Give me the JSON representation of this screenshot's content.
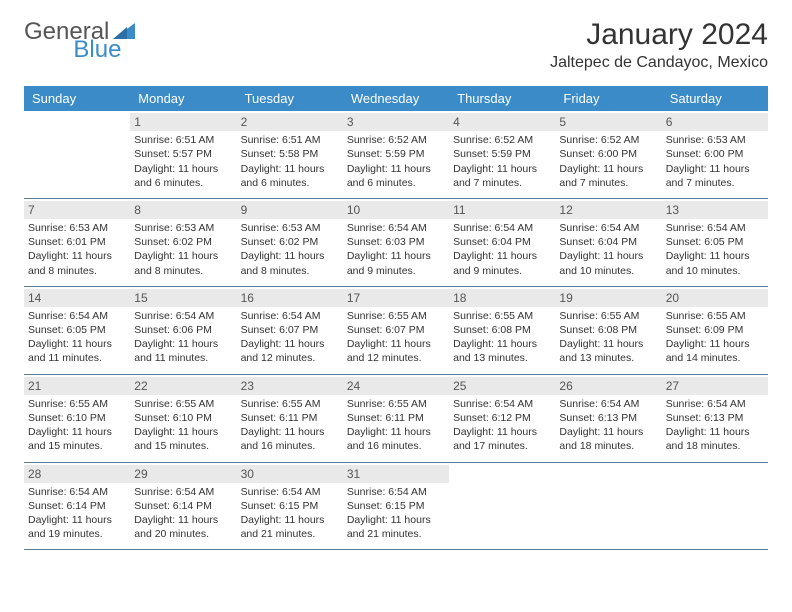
{
  "logo": {
    "text1": "General",
    "text2": "Blue"
  },
  "title": "January 2024",
  "location": "Jaltepec de Candayoc, Mexico",
  "colors": {
    "header_bg": "#3b8bc9",
    "header_text": "#ffffff",
    "daynum_bg": "#e9e9e9",
    "rule": "#5a7a9a",
    "text": "#333333"
  },
  "day_names": [
    "Sunday",
    "Monday",
    "Tuesday",
    "Wednesday",
    "Thursday",
    "Friday",
    "Saturday"
  ],
  "weeks": [
    [
      null,
      {
        "n": "1",
        "sr": "Sunrise: 6:51 AM",
        "ss": "Sunset: 5:57 PM",
        "d1": "Daylight: 11 hours",
        "d2": "and 6 minutes."
      },
      {
        "n": "2",
        "sr": "Sunrise: 6:51 AM",
        "ss": "Sunset: 5:58 PM",
        "d1": "Daylight: 11 hours",
        "d2": "and 6 minutes."
      },
      {
        "n": "3",
        "sr": "Sunrise: 6:52 AM",
        "ss": "Sunset: 5:59 PM",
        "d1": "Daylight: 11 hours",
        "d2": "and 6 minutes."
      },
      {
        "n": "4",
        "sr": "Sunrise: 6:52 AM",
        "ss": "Sunset: 5:59 PM",
        "d1": "Daylight: 11 hours",
        "d2": "and 7 minutes."
      },
      {
        "n": "5",
        "sr": "Sunrise: 6:52 AM",
        "ss": "Sunset: 6:00 PM",
        "d1": "Daylight: 11 hours",
        "d2": "and 7 minutes."
      },
      {
        "n": "6",
        "sr": "Sunrise: 6:53 AM",
        "ss": "Sunset: 6:00 PM",
        "d1": "Daylight: 11 hours",
        "d2": "and 7 minutes."
      }
    ],
    [
      {
        "n": "7",
        "sr": "Sunrise: 6:53 AM",
        "ss": "Sunset: 6:01 PM",
        "d1": "Daylight: 11 hours",
        "d2": "and 8 minutes."
      },
      {
        "n": "8",
        "sr": "Sunrise: 6:53 AM",
        "ss": "Sunset: 6:02 PM",
        "d1": "Daylight: 11 hours",
        "d2": "and 8 minutes."
      },
      {
        "n": "9",
        "sr": "Sunrise: 6:53 AM",
        "ss": "Sunset: 6:02 PM",
        "d1": "Daylight: 11 hours",
        "d2": "and 8 minutes."
      },
      {
        "n": "10",
        "sr": "Sunrise: 6:54 AM",
        "ss": "Sunset: 6:03 PM",
        "d1": "Daylight: 11 hours",
        "d2": "and 9 minutes."
      },
      {
        "n": "11",
        "sr": "Sunrise: 6:54 AM",
        "ss": "Sunset: 6:04 PM",
        "d1": "Daylight: 11 hours",
        "d2": "and 9 minutes."
      },
      {
        "n": "12",
        "sr": "Sunrise: 6:54 AM",
        "ss": "Sunset: 6:04 PM",
        "d1": "Daylight: 11 hours",
        "d2": "and 10 minutes."
      },
      {
        "n": "13",
        "sr": "Sunrise: 6:54 AM",
        "ss": "Sunset: 6:05 PM",
        "d1": "Daylight: 11 hours",
        "d2": "and 10 minutes."
      }
    ],
    [
      {
        "n": "14",
        "sr": "Sunrise: 6:54 AM",
        "ss": "Sunset: 6:05 PM",
        "d1": "Daylight: 11 hours",
        "d2": "and 11 minutes."
      },
      {
        "n": "15",
        "sr": "Sunrise: 6:54 AM",
        "ss": "Sunset: 6:06 PM",
        "d1": "Daylight: 11 hours",
        "d2": "and 11 minutes."
      },
      {
        "n": "16",
        "sr": "Sunrise: 6:54 AM",
        "ss": "Sunset: 6:07 PM",
        "d1": "Daylight: 11 hours",
        "d2": "and 12 minutes."
      },
      {
        "n": "17",
        "sr": "Sunrise: 6:55 AM",
        "ss": "Sunset: 6:07 PM",
        "d1": "Daylight: 11 hours",
        "d2": "and 12 minutes."
      },
      {
        "n": "18",
        "sr": "Sunrise: 6:55 AM",
        "ss": "Sunset: 6:08 PM",
        "d1": "Daylight: 11 hours",
        "d2": "and 13 minutes."
      },
      {
        "n": "19",
        "sr": "Sunrise: 6:55 AM",
        "ss": "Sunset: 6:08 PM",
        "d1": "Daylight: 11 hours",
        "d2": "and 13 minutes."
      },
      {
        "n": "20",
        "sr": "Sunrise: 6:55 AM",
        "ss": "Sunset: 6:09 PM",
        "d1": "Daylight: 11 hours",
        "d2": "and 14 minutes."
      }
    ],
    [
      {
        "n": "21",
        "sr": "Sunrise: 6:55 AM",
        "ss": "Sunset: 6:10 PM",
        "d1": "Daylight: 11 hours",
        "d2": "and 15 minutes."
      },
      {
        "n": "22",
        "sr": "Sunrise: 6:55 AM",
        "ss": "Sunset: 6:10 PM",
        "d1": "Daylight: 11 hours",
        "d2": "and 15 minutes."
      },
      {
        "n": "23",
        "sr": "Sunrise: 6:55 AM",
        "ss": "Sunset: 6:11 PM",
        "d1": "Daylight: 11 hours",
        "d2": "and 16 minutes."
      },
      {
        "n": "24",
        "sr": "Sunrise: 6:55 AM",
        "ss": "Sunset: 6:11 PM",
        "d1": "Daylight: 11 hours",
        "d2": "and 16 minutes."
      },
      {
        "n": "25",
        "sr": "Sunrise: 6:54 AM",
        "ss": "Sunset: 6:12 PM",
        "d1": "Daylight: 11 hours",
        "d2": "and 17 minutes."
      },
      {
        "n": "26",
        "sr": "Sunrise: 6:54 AM",
        "ss": "Sunset: 6:13 PM",
        "d1": "Daylight: 11 hours",
        "d2": "and 18 minutes."
      },
      {
        "n": "27",
        "sr": "Sunrise: 6:54 AM",
        "ss": "Sunset: 6:13 PM",
        "d1": "Daylight: 11 hours",
        "d2": "and 18 minutes."
      }
    ],
    [
      {
        "n": "28",
        "sr": "Sunrise: 6:54 AM",
        "ss": "Sunset: 6:14 PM",
        "d1": "Daylight: 11 hours",
        "d2": "and 19 minutes."
      },
      {
        "n": "29",
        "sr": "Sunrise: 6:54 AM",
        "ss": "Sunset: 6:14 PM",
        "d1": "Daylight: 11 hours",
        "d2": "and 20 minutes."
      },
      {
        "n": "30",
        "sr": "Sunrise: 6:54 AM",
        "ss": "Sunset: 6:15 PM",
        "d1": "Daylight: 11 hours",
        "d2": "and 21 minutes."
      },
      {
        "n": "31",
        "sr": "Sunrise: 6:54 AM",
        "ss": "Sunset: 6:15 PM",
        "d1": "Daylight: 11 hours",
        "d2": "and 21 minutes."
      },
      null,
      null,
      null
    ]
  ]
}
